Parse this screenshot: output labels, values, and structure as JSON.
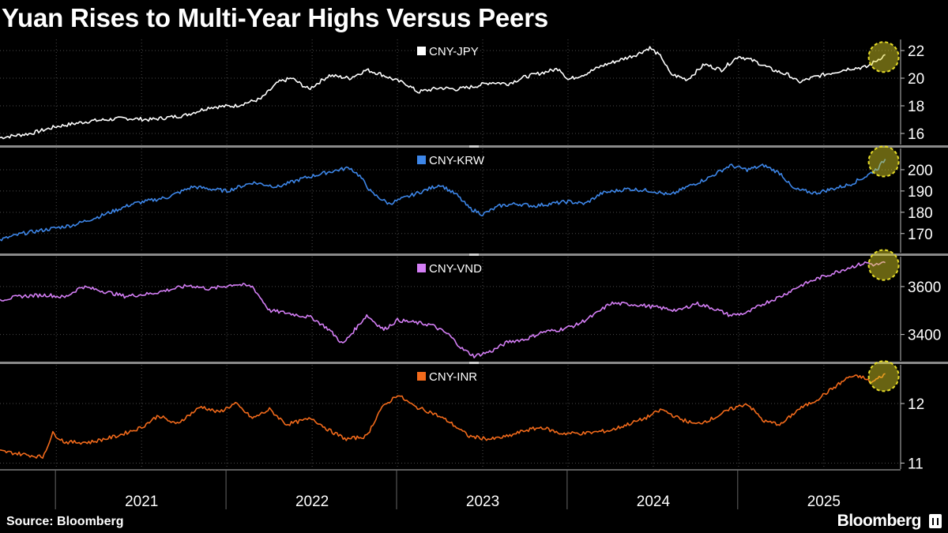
{
  "title": "Yuan Rises to Multi-Year Highs Versus Peers",
  "source": "Source: Bloomberg",
  "brand": "Bloomberg",
  "chart_data": {
    "type": "line",
    "x_ticks": [
      "2021",
      "2022",
      "2023",
      "2024",
      "2025"
    ],
    "x_range": [
      "2020-09",
      "2025-10"
    ],
    "highlight": "circle on latest value of each series",
    "panels": [
      {
        "name": "CNY-JPY",
        "color": "#ffffff",
        "ylim": [
          15.2,
          22.8
        ],
        "yticks": [
          16,
          18,
          20,
          22
        ],
        "points": [
          [
            2020.67,
            15.7
          ],
          [
            2020.85,
            16.0
          ],
          [
            2021.0,
            16.5
          ],
          [
            2021.2,
            16.9
          ],
          [
            2021.4,
            17.1
          ],
          [
            2021.55,
            17.0
          ],
          [
            2021.75,
            17.3
          ],
          [
            2021.9,
            17.9
          ],
          [
            2022.05,
            18.0
          ],
          [
            2022.2,
            18.5
          ],
          [
            2022.3,
            19.7
          ],
          [
            2022.38,
            20.0
          ],
          [
            2022.48,
            19.2
          ],
          [
            2022.6,
            20.2
          ],
          [
            2022.72,
            20.0
          ],
          [
            2022.82,
            20.6
          ],
          [
            2022.9,
            20.3
          ],
          [
            2023.0,
            19.8
          ],
          [
            2023.05,
            19.6
          ],
          [
            2023.12,
            19.0
          ],
          [
            2023.25,
            19.3
          ],
          [
            2023.35,
            19.2
          ],
          [
            2023.45,
            19.4
          ],
          [
            2023.55,
            19.7
          ],
          [
            2023.65,
            19.6
          ],
          [
            2023.75,
            20.1
          ],
          [
            2023.85,
            20.4
          ],
          [
            2023.95,
            20.7
          ],
          [
            2024.0,
            19.9
          ],
          [
            2024.1,
            20.3
          ],
          [
            2024.2,
            20.9
          ],
          [
            2024.3,
            21.3
          ],
          [
            2024.4,
            21.7
          ],
          [
            2024.48,
            22.2
          ],
          [
            2024.55,
            21.5
          ],
          [
            2024.6,
            20.3
          ],
          [
            2024.7,
            19.9
          ],
          [
            2024.8,
            21.0
          ],
          [
            2024.9,
            20.6
          ],
          [
            2025.0,
            21.6
          ],
          [
            2025.1,
            21.2
          ],
          [
            2025.2,
            20.6
          ],
          [
            2025.3,
            20.2
          ],
          [
            2025.35,
            19.7
          ],
          [
            2025.45,
            20.1
          ],
          [
            2025.55,
            20.4
          ],
          [
            2025.65,
            20.7
          ],
          [
            2025.75,
            20.8
          ],
          [
            2025.8,
            21.2
          ],
          [
            2025.86,
            21.7
          ]
        ]
      },
      {
        "name": "CNY-KRW",
        "color": "#3d86e8",
        "ylim": [
          161,
          210
        ],
        "yticks": [
          170,
          180,
          190,
          200
        ],
        "points": [
          [
            2020.67,
            167
          ],
          [
            2020.8,
            170
          ],
          [
            2020.95,
            172
          ],
          [
            2021.1,
            174
          ],
          [
            2021.25,
            178
          ],
          [
            2021.45,
            184
          ],
          [
            2021.65,
            187
          ],
          [
            2021.8,
            192
          ],
          [
            2022.0,
            190
          ],
          [
            2022.15,
            194
          ],
          [
            2022.3,
            192
          ],
          [
            2022.45,
            196
          ],
          [
            2022.6,
            199
          ],
          [
            2022.72,
            201
          ],
          [
            2022.78,
            197
          ],
          [
            2022.85,
            189
          ],
          [
            2022.95,
            184
          ],
          [
            2023.05,
            187
          ],
          [
            2023.15,
            190
          ],
          [
            2023.25,
            193
          ],
          [
            2023.35,
            188
          ],
          [
            2023.42,
            182
          ],
          [
            2023.5,
            179
          ],
          [
            2023.6,
            183
          ],
          [
            2023.7,
            184
          ],
          [
            2023.8,
            183
          ],
          [
            2023.9,
            184
          ],
          [
            2024.0,
            185
          ],
          [
            2024.1,
            184
          ],
          [
            2024.2,
            189
          ],
          [
            2024.35,
            191
          ],
          [
            2024.5,
            190
          ],
          [
            2024.6,
            188
          ],
          [
            2024.7,
            192
          ],
          [
            2024.82,
            196
          ],
          [
            2024.95,
            202
          ],
          [
            2025.05,
            200
          ],
          [
            2025.15,
            202
          ],
          [
            2025.25,
            198
          ],
          [
            2025.32,
            191
          ],
          [
            2025.45,
            189
          ],
          [
            2025.55,
            191
          ],
          [
            2025.65,
            193
          ],
          [
            2025.75,
            197
          ],
          [
            2025.82,
            201
          ],
          [
            2025.86,
            205
          ]
        ]
      },
      {
        "name": "CNY-VND",
        "color": "#d47ef5",
        "ylim": [
          3290,
          3725
        ],
        "yticks": [
          3400,
          3600
        ],
        "points": [
          [
            2020.67,
            3545
          ],
          [
            2020.8,
            3560
          ],
          [
            2020.95,
            3565
          ],
          [
            2021.05,
            3555
          ],
          [
            2021.15,
            3600
          ],
          [
            2021.25,
            3585
          ],
          [
            2021.4,
            3560
          ],
          [
            2021.55,
            3570
          ],
          [
            2021.65,
            3585
          ],
          [
            2021.78,
            3605
          ],
          [
            2021.9,
            3590
          ],
          [
            2022.05,
            3610
          ],
          [
            2022.15,
            3600
          ],
          [
            2022.25,
            3500
          ],
          [
            2022.35,
            3490
          ],
          [
            2022.5,
            3470
          ],
          [
            2022.6,
            3420
          ],
          [
            2022.68,
            3360
          ],
          [
            2022.75,
            3420
          ],
          [
            2022.82,
            3480
          ],
          [
            2022.92,
            3420
          ],
          [
            2023.0,
            3460
          ],
          [
            2023.1,
            3450
          ],
          [
            2023.2,
            3440
          ],
          [
            2023.3,
            3400
          ],
          [
            2023.38,
            3340
          ],
          [
            2023.45,
            3310
          ],
          [
            2023.55,
            3330
          ],
          [
            2023.65,
            3370
          ],
          [
            2023.75,
            3380
          ],
          [
            2023.85,
            3410
          ],
          [
            2023.95,
            3420
          ],
          [
            2024.05,
            3440
          ],
          [
            2024.15,
            3480
          ],
          [
            2024.25,
            3530
          ],
          [
            2024.4,
            3525
          ],
          [
            2024.55,
            3510
          ],
          [
            2024.65,
            3500
          ],
          [
            2024.75,
            3530
          ],
          [
            2024.85,
            3510
          ],
          [
            2024.95,
            3480
          ],
          [
            2025.05,
            3490
          ],
          [
            2025.15,
            3530
          ],
          [
            2025.25,
            3560
          ],
          [
            2025.35,
            3600
          ],
          [
            2025.45,
            3630
          ],
          [
            2025.55,
            3655
          ],
          [
            2025.65,
            3680
          ],
          [
            2025.75,
            3700
          ],
          [
            2025.8,
            3690
          ],
          [
            2025.86,
            3700
          ]
        ]
      },
      {
        "name": "CNY-INR",
        "color": "#f26a1b",
        "ylim": [
          10.9,
          12.65
        ],
        "yticks": [
          11,
          12
        ],
        "points": [
          [
            2020.67,
            11.2
          ],
          [
            2020.8,
            11.15
          ],
          [
            2020.92,
            11.1
          ],
          [
            2020.98,
            11.5
          ],
          [
            2021.05,
            11.35
          ],
          [
            2021.2,
            11.35
          ],
          [
            2021.35,
            11.45
          ],
          [
            2021.5,
            11.6
          ],
          [
            2021.6,
            11.8
          ],
          [
            2021.7,
            11.65
          ],
          [
            2021.85,
            11.95
          ],
          [
            2021.95,
            11.85
          ],
          [
            2022.05,
            12.0
          ],
          [
            2022.15,
            11.75
          ],
          [
            2022.25,
            11.9
          ],
          [
            2022.35,
            11.65
          ],
          [
            2022.5,
            11.75
          ],
          [
            2022.6,
            11.55
          ],
          [
            2022.7,
            11.4
          ],
          [
            2022.82,
            11.45
          ],
          [
            2022.9,
            11.9
          ],
          [
            2023.0,
            12.15
          ],
          [
            2023.1,
            11.95
          ],
          [
            2023.2,
            11.85
          ],
          [
            2023.3,
            11.7
          ],
          [
            2023.42,
            11.45
          ],
          [
            2023.55,
            11.4
          ],
          [
            2023.65,
            11.45
          ],
          [
            2023.75,
            11.55
          ],
          [
            2023.85,
            11.6
          ],
          [
            2023.95,
            11.5
          ],
          [
            2024.1,
            11.5
          ],
          [
            2024.25,
            11.55
          ],
          [
            2024.35,
            11.65
          ],
          [
            2024.45,
            11.75
          ],
          [
            2024.55,
            11.9
          ],
          [
            2024.65,
            11.75
          ],
          [
            2024.75,
            11.65
          ],
          [
            2024.85,
            11.75
          ],
          [
            2024.95,
            11.9
          ],
          [
            2025.05,
            12.0
          ],
          [
            2025.15,
            11.7
          ],
          [
            2025.25,
            11.65
          ],
          [
            2025.35,
            11.9
          ],
          [
            2025.45,
            12.05
          ],
          [
            2025.55,
            12.25
          ],
          [
            2025.65,
            12.45
          ],
          [
            2025.72,
            12.45
          ],
          [
            2025.78,
            12.35
          ],
          [
            2025.86,
            12.5
          ]
        ]
      }
    ]
  }
}
